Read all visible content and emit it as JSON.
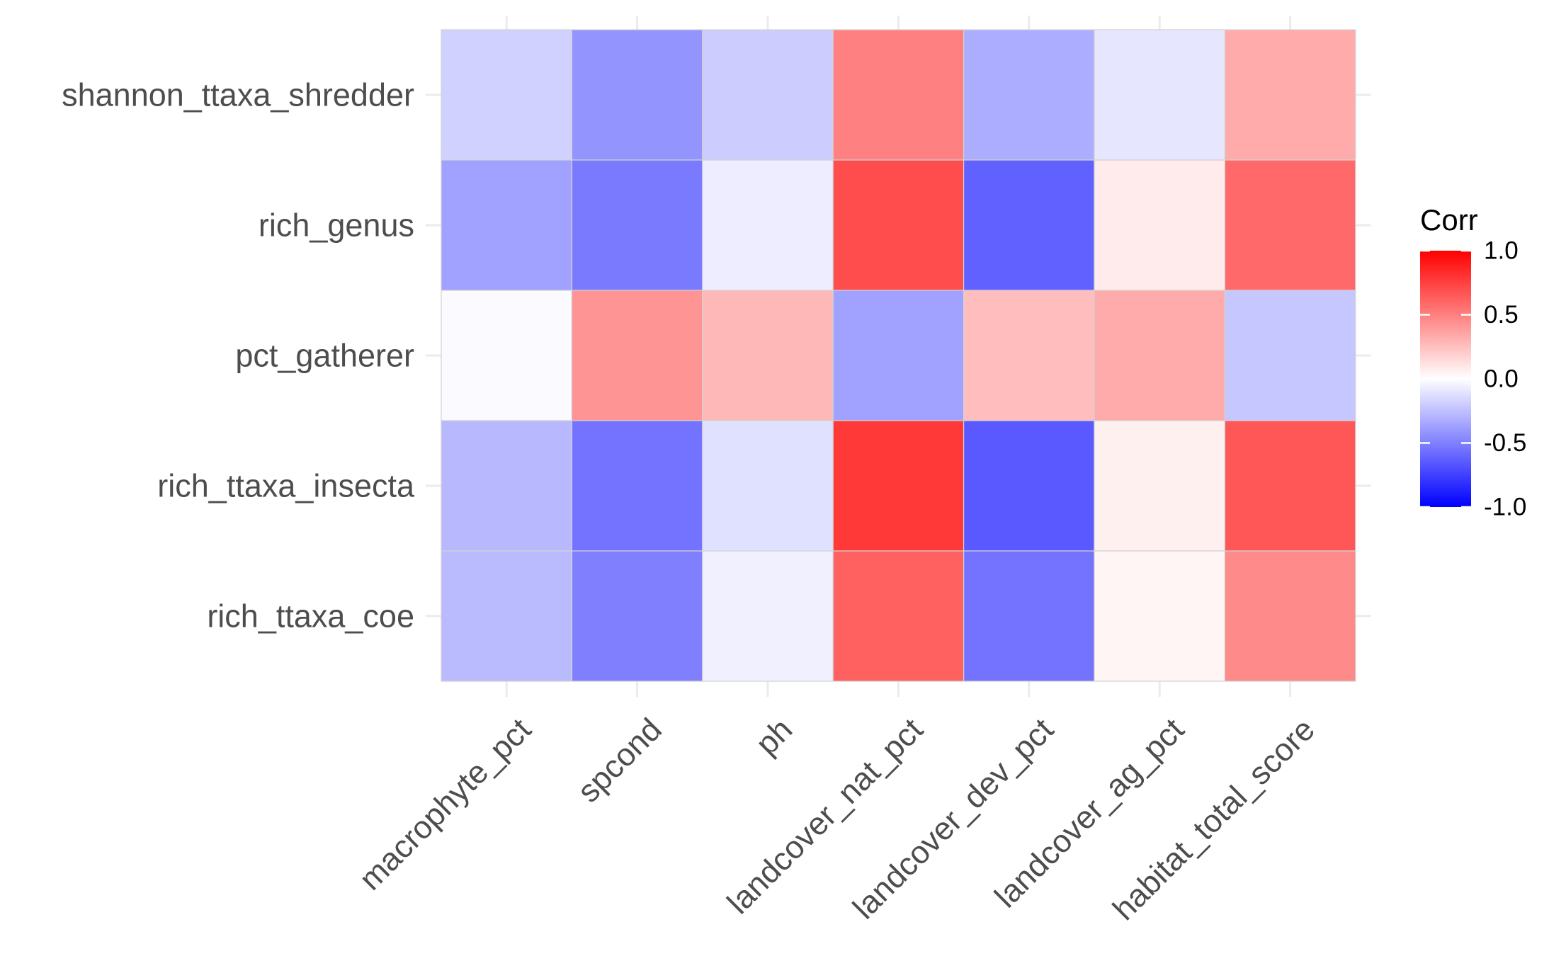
{
  "chart_data": {
    "type": "heatmap",
    "title": "",
    "xlabel": "",
    "ylabel": "",
    "x_categories": [
      "macrophyte_pct",
      "spcond",
      "ph",
      "landcover_nat_pct",
      "landcover_dev_pct",
      "landcover_ag_pct",
      "habitat_total_score"
    ],
    "y_categories": [
      "shannon_ttaxa_shredder",
      "rich_genus",
      "pct_gatherer",
      "rich_ttaxa_insecta",
      "rich_ttaxa_coe"
    ],
    "values": [
      [
        -0.18,
        -0.42,
        -0.2,
        0.5,
        -0.32,
        -0.1,
        0.33
      ],
      [
        -0.37,
        -0.52,
        -0.07,
        0.7,
        -0.62,
        0.08,
        0.59
      ],
      [
        -0.02,
        0.42,
        0.28,
        -0.37,
        0.26,
        0.33,
        -0.22
      ],
      [
        -0.28,
        -0.55,
        -0.12,
        0.78,
        -0.65,
        0.06,
        0.66
      ],
      [
        -0.27,
        -0.5,
        -0.06,
        0.62,
        -0.55,
        0.04,
        0.46
      ]
    ],
    "zlim": [
      -1,
      1
    ],
    "grid": true,
    "legend": {
      "title": "Corr",
      "position": "right",
      "ticks": [
        1.0,
        0.5,
        0.0,
        -0.5,
        -1.0
      ],
      "tick_labels": [
        "1.0",
        "0.5",
        "0.0",
        "-0.5",
        "-1.0"
      ],
      "colors": {
        "low": "#0000ff",
        "mid": "#ffffff",
        "high": "#ff0000"
      }
    }
  }
}
